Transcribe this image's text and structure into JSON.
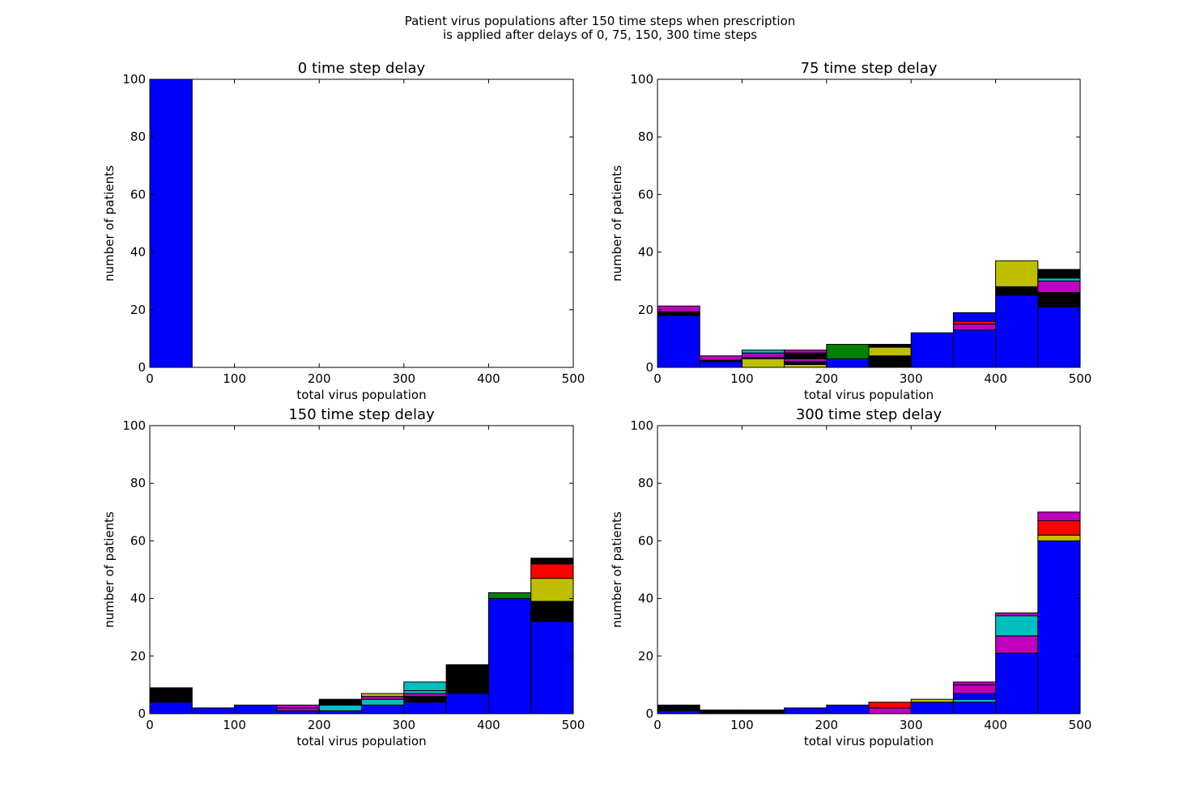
{
  "figure": {
    "suptitle_line1": "Patient virus populations after 150 time steps when prescription",
    "suptitle_line2": "is applied after delays of 0, 75, 150, 300 time steps"
  },
  "colors": {
    "blue": "#0000ff",
    "black": "#000000",
    "magenta": "#bf00bf",
    "cyan": "#00bfbf",
    "yellow": "#bfbf00",
    "green": "#008000",
    "red": "#ff0000"
  },
  "chart_data": [
    {
      "type": "bar",
      "stacked": true,
      "title": "0 time step delay",
      "xlabel": "total virus population",
      "ylabel": "number of patients",
      "xlim": [
        0,
        500
      ],
      "ylim": [
        0,
        100
      ],
      "xticks": [
        0,
        100,
        200,
        300,
        400,
        500
      ],
      "yticks": [
        0,
        20,
        40,
        60,
        80,
        100
      ],
      "bin_edges": [
        0,
        50,
        100,
        150,
        200,
        250,
        300,
        350,
        400,
        450,
        500
      ],
      "bars": [
        {
          "bin": 0,
          "segments": [
            {
              "color": "blue",
              "value": 100
            }
          ]
        }
      ]
    },
    {
      "type": "bar",
      "stacked": true,
      "title": "75 time step delay",
      "xlabel": "total virus population",
      "ylabel": "number of patients",
      "xlim": [
        0,
        500
      ],
      "ylim": [
        0,
        100
      ],
      "xticks": [
        0,
        100,
        200,
        300,
        400,
        500
      ],
      "yticks": [
        0,
        20,
        40,
        60,
        80,
        100
      ],
      "bin_edges": [
        0,
        50,
        100,
        150,
        200,
        250,
        300,
        350,
        400,
        450,
        500
      ],
      "bars": [
        {
          "bin": 0,
          "segments": [
            {
              "color": "blue",
              "value": 18
            },
            {
              "color": "black",
              "value": 1
            },
            {
              "color": "green",
              "value": 0.3
            },
            {
              "color": "magenta",
              "value": 2
            }
          ]
        },
        {
          "bin": 1,
          "segments": [
            {
              "color": "blue",
              "value": 2
            },
            {
              "color": "black",
              "value": 0.5
            },
            {
              "color": "magenta",
              "value": 1.5
            }
          ]
        },
        {
          "bin": 2,
          "segments": [
            {
              "color": "yellow",
              "value": 3
            },
            {
              "color": "black",
              "value": 0.5
            },
            {
              "color": "magenta",
              "value": 1.5
            },
            {
              "color": "cyan",
              "value": 1
            }
          ]
        },
        {
          "bin": 3,
          "segments": [
            {
              "color": "yellow",
              "value": 1
            },
            {
              "color": "black",
              "value": 1
            },
            {
              "color": "magenta",
              "value": 1
            },
            {
              "color": "black",
              "value": 2
            },
            {
              "color": "magenta",
              "value": 1
            }
          ]
        },
        {
          "bin": 4,
          "segments": [
            {
              "color": "blue",
              "value": 3
            },
            {
              "color": "green",
              "value": 5
            }
          ]
        },
        {
          "bin": 5,
          "segments": [
            {
              "color": "black",
              "value": 4
            },
            {
              "color": "yellow",
              "value": 3
            },
            {
              "color": "black",
              "value": 1
            }
          ]
        },
        {
          "bin": 6,
          "segments": [
            {
              "color": "blue",
              "value": 12
            }
          ]
        },
        {
          "bin": 7,
          "segments": [
            {
              "color": "blue",
              "value": 13
            },
            {
              "color": "magenta",
              "value": 2
            },
            {
              "color": "red",
              "value": 1
            },
            {
              "color": "blue",
              "value": 3
            }
          ]
        },
        {
          "bin": 8,
          "segments": [
            {
              "color": "blue",
              "value": 25
            },
            {
              "color": "black",
              "value": 3
            },
            {
              "color": "yellow",
              "value": 9
            }
          ]
        },
        {
          "bin": 9,
          "segments": [
            {
              "color": "blue",
              "value": 21
            },
            {
              "color": "black",
              "value": 5
            },
            {
              "color": "magenta",
              "value": 4
            },
            {
              "color": "cyan",
              "value": 1
            },
            {
              "color": "black",
              "value": 3
            }
          ]
        }
      ]
    },
    {
      "type": "bar",
      "stacked": true,
      "title": "150 time step delay",
      "xlabel": "total virus population",
      "ylabel": "number of patients",
      "xlim": [
        0,
        500
      ],
      "ylim": [
        0,
        100
      ],
      "xticks": [
        0,
        100,
        200,
        300,
        400,
        500
      ],
      "yticks": [
        0,
        20,
        40,
        60,
        80,
        100
      ],
      "bin_edges": [
        0,
        50,
        100,
        150,
        200,
        250,
        300,
        350,
        400,
        450,
        500
      ],
      "bars": [
        {
          "bin": 0,
          "segments": [
            {
              "color": "blue",
              "value": 4
            },
            {
              "color": "black",
              "value": 5
            }
          ]
        },
        {
          "bin": 1,
          "segments": [
            {
              "color": "blue",
              "value": 2
            }
          ]
        },
        {
          "bin": 2,
          "segments": [
            {
              "color": "blue",
              "value": 3
            }
          ]
        },
        {
          "bin": 3,
          "segments": [
            {
              "color": "blue",
              "value": 1
            },
            {
              "color": "magenta",
              "value": 1
            },
            {
              "color": "magenta",
              "value": 1
            }
          ]
        },
        {
          "bin": 4,
          "segments": [
            {
              "color": "blue",
              "value": 1
            },
            {
              "color": "cyan",
              "value": 2
            },
            {
              "color": "black",
              "value": 2
            }
          ]
        },
        {
          "bin": 5,
          "segments": [
            {
              "color": "blue",
              "value": 3
            },
            {
              "color": "cyan",
              "value": 2
            },
            {
              "color": "magenta",
              "value": 1
            },
            {
              "color": "yellow",
              "value": 1
            }
          ]
        },
        {
          "bin": 6,
          "segments": [
            {
              "color": "blue",
              "value": 4
            },
            {
              "color": "black",
              "value": 2
            },
            {
              "color": "magenta",
              "value": 1
            },
            {
              "color": "cyan",
              "value": 1
            },
            {
              "color": "cyan",
              "value": 3
            }
          ]
        },
        {
          "bin": 7,
          "segments": [
            {
              "color": "blue",
              "value": 7
            },
            {
              "color": "black",
              "value": 10
            }
          ]
        },
        {
          "bin": 8,
          "segments": [
            {
              "color": "blue",
              "value": 40
            },
            {
              "color": "green",
              "value": 2
            }
          ]
        },
        {
          "bin": 9,
          "segments": [
            {
              "color": "blue",
              "value": 32
            },
            {
              "color": "black",
              "value": 7
            },
            {
              "color": "yellow",
              "value": 8
            },
            {
              "color": "red",
              "value": 5
            },
            {
              "color": "black",
              "value": 2
            }
          ]
        }
      ]
    },
    {
      "type": "bar",
      "stacked": true,
      "title": "300 time step delay",
      "xlabel": "total virus population",
      "ylabel": "number of patients",
      "xlim": [
        0,
        500
      ],
      "ylim": [
        0,
        100
      ],
      "xticks": [
        0,
        100,
        200,
        300,
        400,
        500
      ],
      "yticks": [
        0,
        20,
        40,
        60,
        80,
        100
      ],
      "bin_edges": [
        0,
        50,
        100,
        150,
        200,
        250,
        300,
        350,
        400,
        450,
        500
      ],
      "bars": [
        {
          "bin": 0,
          "segments": [
            {
              "color": "blue",
              "value": 1
            },
            {
              "color": "black",
              "value": 2
            }
          ]
        },
        {
          "bin": 1,
          "segments": [
            {
              "color": "blue",
              "value": 0.3
            },
            {
              "color": "black",
              "value": 1
            }
          ]
        },
        {
          "bin": 2,
          "segments": [
            {
              "color": "blue",
              "value": 0.3
            },
            {
              "color": "black",
              "value": 1
            }
          ]
        },
        {
          "bin": 3,
          "segments": [
            {
              "color": "blue",
              "value": 2
            }
          ]
        },
        {
          "bin": 4,
          "segments": [
            {
              "color": "blue",
              "value": 3
            }
          ]
        },
        {
          "bin": 5,
          "segments": [
            {
              "color": "magenta",
              "value": 2
            },
            {
              "color": "red",
              "value": 2
            }
          ]
        },
        {
          "bin": 6,
          "segments": [
            {
              "color": "blue",
              "value": 4
            },
            {
              "color": "yellow",
              "value": 1
            }
          ]
        },
        {
          "bin": 7,
          "segments": [
            {
              "color": "blue",
              "value": 4
            },
            {
              "color": "cyan",
              "value": 1
            },
            {
              "color": "blue",
              "value": 2
            },
            {
              "color": "magenta",
              "value": 3
            },
            {
              "color": "magenta",
              "value": 1
            }
          ]
        },
        {
          "bin": 8,
          "segments": [
            {
              "color": "blue",
              "value": 21
            },
            {
              "color": "magenta",
              "value": 6
            },
            {
              "color": "cyan",
              "value": 7
            },
            {
              "color": "magenta",
              "value": 1
            }
          ]
        },
        {
          "bin": 9,
          "segments": [
            {
              "color": "blue",
              "value": 60
            },
            {
              "color": "yellow",
              "value": 2
            },
            {
              "color": "red",
              "value": 5
            },
            {
              "color": "magenta",
              "value": 3
            }
          ]
        }
      ]
    }
  ]
}
